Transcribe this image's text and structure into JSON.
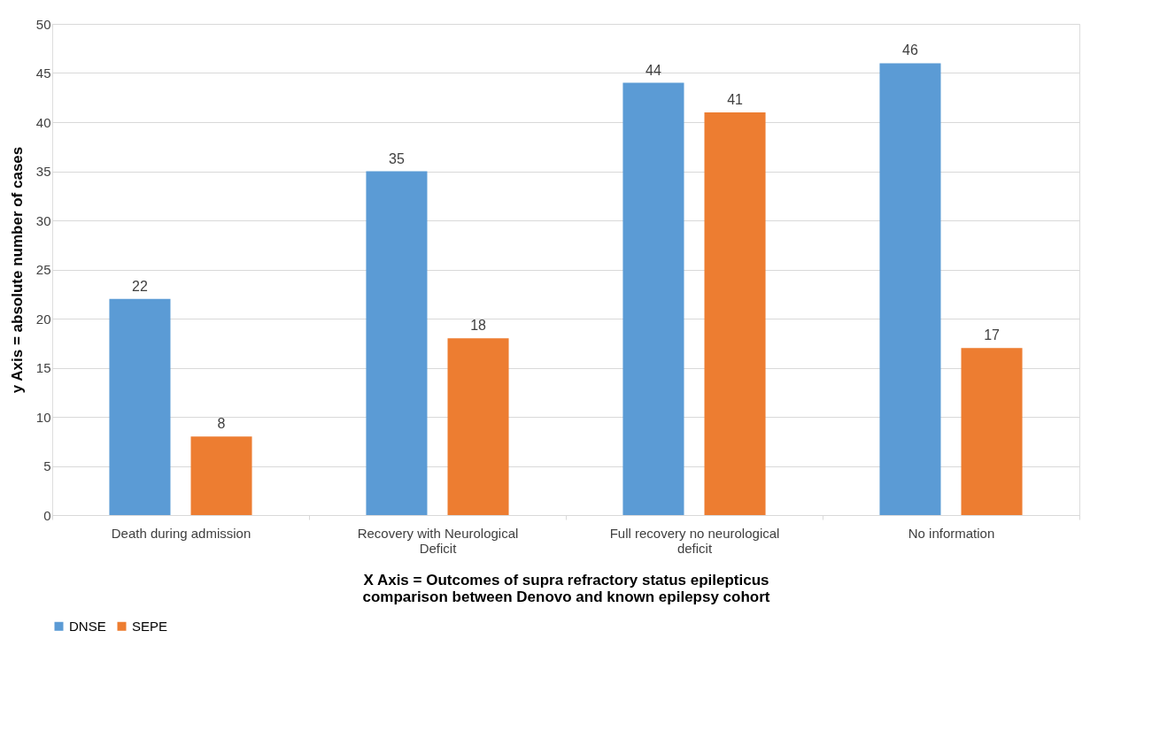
{
  "chart_data": {
    "type": "bar",
    "xlabel": "X Axis = Outcomes of supra refractory status epilepticus comparison between Denovo and known epilepsy cohort",
    "ylabel": "y Axis = absolute number of cases",
    "categories": [
      "Death during admission",
      "Recovery with Neurological Deficit",
      "Full recovery no neurological deficit",
      "No information"
    ],
    "series": [
      {
        "name": "DNSE",
        "color": "#5b9bd5",
        "values": [
          22,
          35,
          44,
          46
        ]
      },
      {
        "name": "SEPE",
        "color": "#ed7d31",
        "values": [
          8,
          18,
          41,
          17
        ]
      }
    ],
    "ylim": [
      0,
      50
    ],
    "yticks": [
      0,
      5,
      10,
      15,
      20,
      25,
      30,
      35,
      40,
      45,
      50
    ],
    "grid": "y",
    "legend": "bottom",
    "data_labels": true
  }
}
